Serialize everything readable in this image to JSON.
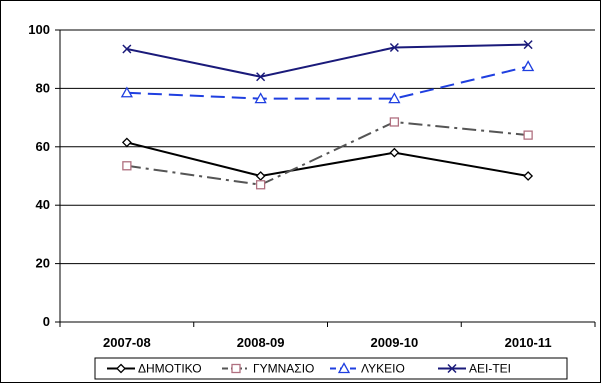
{
  "chart_data": {
    "type": "line",
    "categories": [
      "2007-08",
      "2008-09",
      "2009-10",
      "2010-11"
    ],
    "ylim": [
      0,
      100
    ],
    "yticks": [
      0,
      20,
      40,
      60,
      80,
      100
    ],
    "grid": true,
    "legend_position": "bottom",
    "series": [
      {
        "name": "ΔΗΜΟΤΙΚΟ",
        "values": [
          61.5,
          50,
          58,
          50
        ],
        "color": "#000000",
        "marker": "diamond",
        "dash": "solid"
      },
      {
        "name": "ΓΥΜΝΑΣΙΟ",
        "values": [
          53.5,
          47,
          68.5,
          64
        ],
        "color": "#555555",
        "marker": "square",
        "dash": "dash-dot",
        "marker_color": "#b07080"
      },
      {
        "name": "ΛΥΚΕΙΟ",
        "values": [
          78.5,
          76.5,
          76.5,
          87.5
        ],
        "color": "#1f3fe0",
        "marker": "triangle",
        "dash": "dashed"
      },
      {
        "name": "ΑΕΙ-ΤΕΙ",
        "values": [
          93.5,
          84,
          94,
          95
        ],
        "color": "#1a1a7a",
        "marker": "x",
        "dash": "solid"
      }
    ]
  }
}
